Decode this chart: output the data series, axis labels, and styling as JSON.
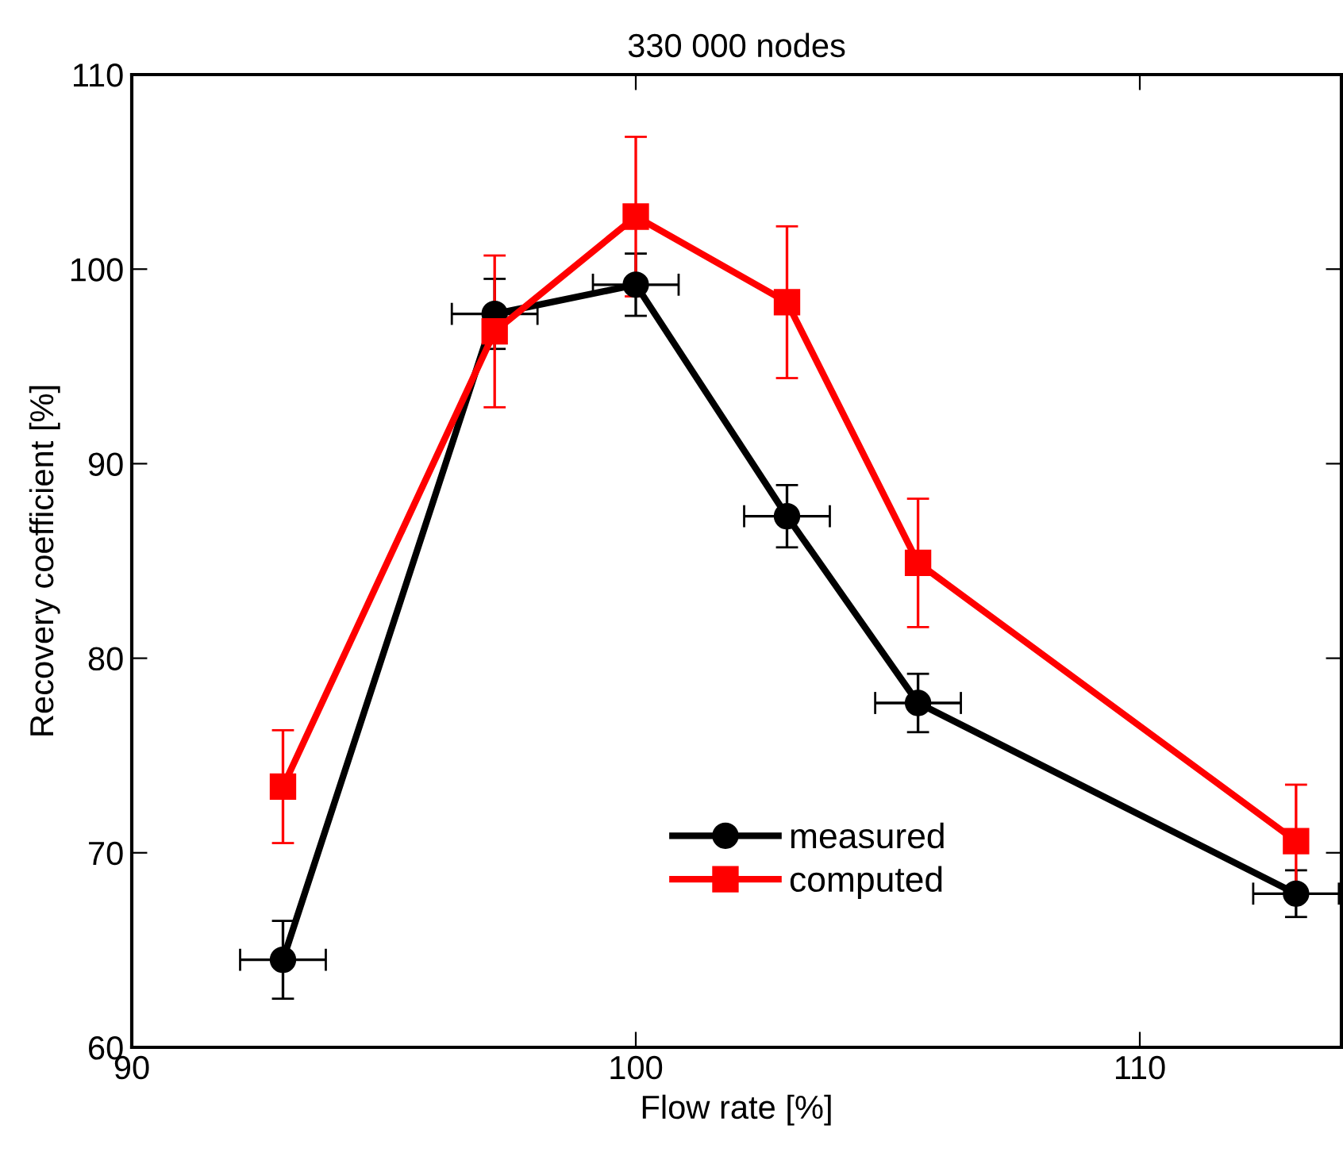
{
  "chart_data": {
    "type": "line",
    "title": "330 000 nodes",
    "xlabel": "Flow rate [%]",
    "ylabel": "Recovery coefficient [%]",
    "x": [
      93.0,
      97.2,
      100.0,
      103.0,
      105.6,
      113.1
    ],
    "series": [
      {
        "name": "measured",
        "color": "#000000",
        "marker": "circle",
        "values": [
          64.5,
          97.7,
          99.2,
          87.3,
          77.7,
          67.9
        ],
        "errors": [
          2,
          1.8,
          1.6,
          1.6,
          1.5,
          1.2
        ],
        "xerrors": [
          0.85,
          0.85,
          0.85,
          0.85,
          0.85,
          0.85
        ]
      },
      {
        "name": "computed",
        "color": "#ff0000",
        "marker": "square",
        "values": [
          73.4,
          96.8,
          102.7,
          98.3,
          84.9,
          70.6
        ],
        "errors": [
          2.9,
          3.9,
          4.1,
          3.9,
          3.3,
          2.9
        ]
      }
    ],
    "xlim": [
      90,
      114
    ],
    "xticks": [
      90,
      100,
      110
    ],
    "ylim": [
      60,
      110
    ],
    "yticks": [
      60,
      70,
      80,
      90,
      100,
      110
    ],
    "legend": "bottom",
    "grid": false,
    "line_style": "solid"
  }
}
